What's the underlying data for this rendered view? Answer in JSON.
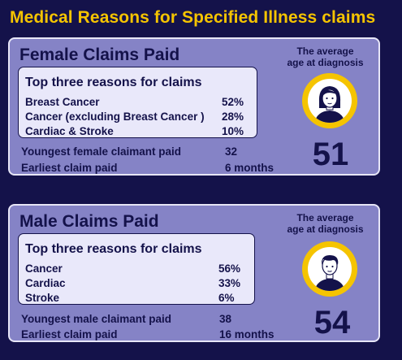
{
  "page_title": "Medical Reasons for Specified Illness claims",
  "female": {
    "title": "Female Claims Paid",
    "reasons_heading": "Top three reasons for claims",
    "reasons": [
      {
        "label": "Breast Cancer",
        "value": "52%"
      },
      {
        "label": "Cancer (excluding Breast Cancer )",
        "value": "28%"
      },
      {
        "label": "Cardiac & Stroke",
        "value": "10%"
      }
    ],
    "facts": [
      {
        "label": "Youngest female claimant paid",
        "value": "32"
      },
      {
        "label": "Earliest claim paid",
        "value": "6 months"
      }
    ],
    "avg_label_line1": "The average",
    "avg_label_line2": "age at diagnosis",
    "avg_age": "51",
    "avatar_icon": "woman-avatar-icon"
  },
  "male": {
    "title": "Male Claims Paid",
    "reasons_heading": "Top three reasons for claims",
    "reasons": [
      {
        "label": "Cancer",
        "value": "56%"
      },
      {
        "label": "Cardiac",
        "value": "33%"
      },
      {
        "label": "Stroke",
        "value": "6%"
      }
    ],
    "facts": [
      {
        "label": "Youngest male claimant paid",
        "value": "38"
      },
      {
        "label": "Earliest claim paid",
        "value": "16 months"
      }
    ],
    "avg_label_line1": "The average",
    "avg_label_line2": "age at diagnosis",
    "avg_age": "54",
    "avatar_icon": "man-avatar-icon"
  },
  "colors": {
    "background": "#14124a",
    "title_accent": "#f5c400",
    "card": "#8583c6",
    "inner_panel": "#e9e8fa"
  }
}
